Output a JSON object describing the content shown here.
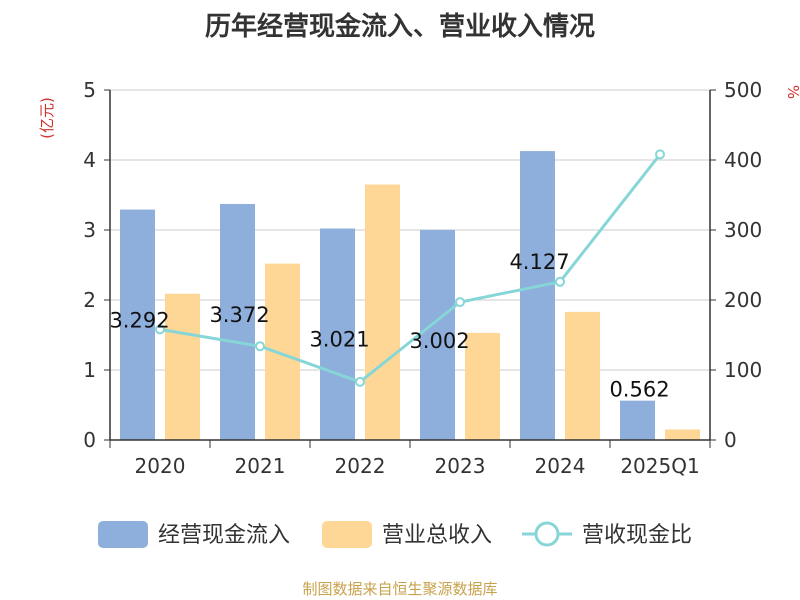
{
  "title": "历年经营现金流入、营业收入情况",
  "footer": "制图数据来自恒生聚源数据库",
  "chart_data": {
    "type": "bar",
    "categories": [
      "2020",
      "2021",
      "2022",
      "2023",
      "2024",
      "2025Q1"
    ],
    "y_left": {
      "label": "(亿元)",
      "min": 0,
      "max": 5,
      "ticks": [
        "0",
        "1",
        "2",
        "3",
        "4",
        "5"
      ]
    },
    "y_right": {
      "label": "%",
      "min": 0,
      "max": 500,
      "ticks": [
        "0",
        "100",
        "200",
        "300",
        "400",
        "500"
      ]
    },
    "grid": true,
    "legend_position": "bottom",
    "series": [
      {
        "name": "经营现金流入",
        "kind": "bar",
        "axis": "left",
        "color": "#8eaedb",
        "values": [
          3.292,
          3.372,
          3.021,
          3.002,
          4.127,
          0.562
        ],
        "labels": [
          "3.292",
          "3.372",
          "3.021",
          "3.002",
          "4.127",
          "0.562"
        ]
      },
      {
        "name": "营业总收入",
        "kind": "bar",
        "axis": "left",
        "color": "#fed797",
        "values": [
          2.09,
          2.52,
          3.65,
          1.53,
          1.83,
          0.15
        ]
      },
      {
        "name": "营收现金比",
        "kind": "line",
        "axis": "right",
        "color": "#86d6d8",
        "values": [
          158,
          134,
          83,
          197,
          226,
          408
        ]
      }
    ]
  }
}
